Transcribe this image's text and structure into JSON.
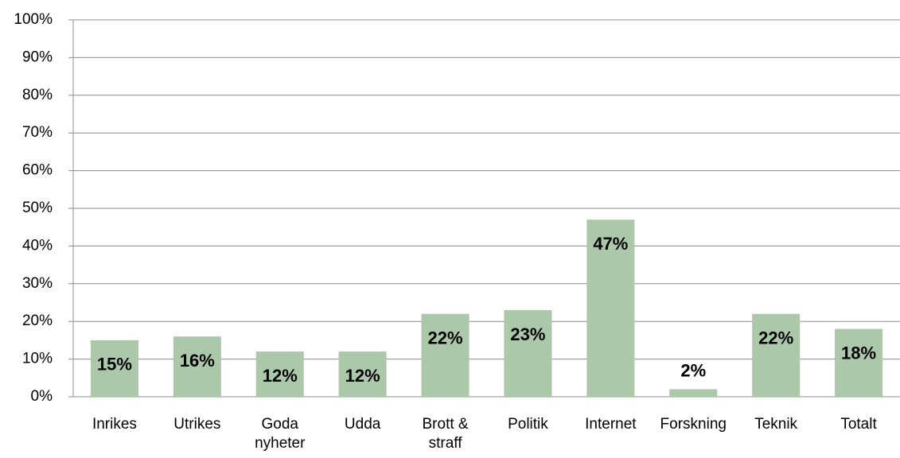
{
  "chart_data": {
    "type": "bar",
    "categories": [
      "Inrikes",
      "Utrikes",
      "Goda nyheter",
      "Udda",
      "Brott & straff",
      "Politik",
      "Internet",
      "Forskning",
      "Teknik",
      "Totalt"
    ],
    "values": [
      15,
      16,
      12,
      12,
      22,
      23,
      47,
      2,
      22,
      18
    ],
    "value_labels": [
      "15%",
      "16%",
      "12%",
      "12%",
      "22%",
      "23%",
      "47%",
      "2%",
      "22%",
      "18%"
    ],
    "color": "#abc9aa",
    "ylim": [
      0,
      100
    ],
    "yticks": [
      {
        "value": 0,
        "label": "0%"
      },
      {
        "value": 10,
        "label": "10%"
      },
      {
        "value": 20,
        "label": "20%"
      },
      {
        "value": 30,
        "label": "30%"
      },
      {
        "value": 40,
        "label": "40%"
      },
      {
        "value": 50,
        "label": "50%"
      },
      {
        "value": 60,
        "label": "60%"
      },
      {
        "value": 70,
        "label": "70%"
      },
      {
        "value": 80,
        "label": "80%"
      },
      {
        "value": 90,
        "label": "90%"
      },
      {
        "value": 100,
        "label": "100%"
      }
    ],
    "grid": true
  }
}
